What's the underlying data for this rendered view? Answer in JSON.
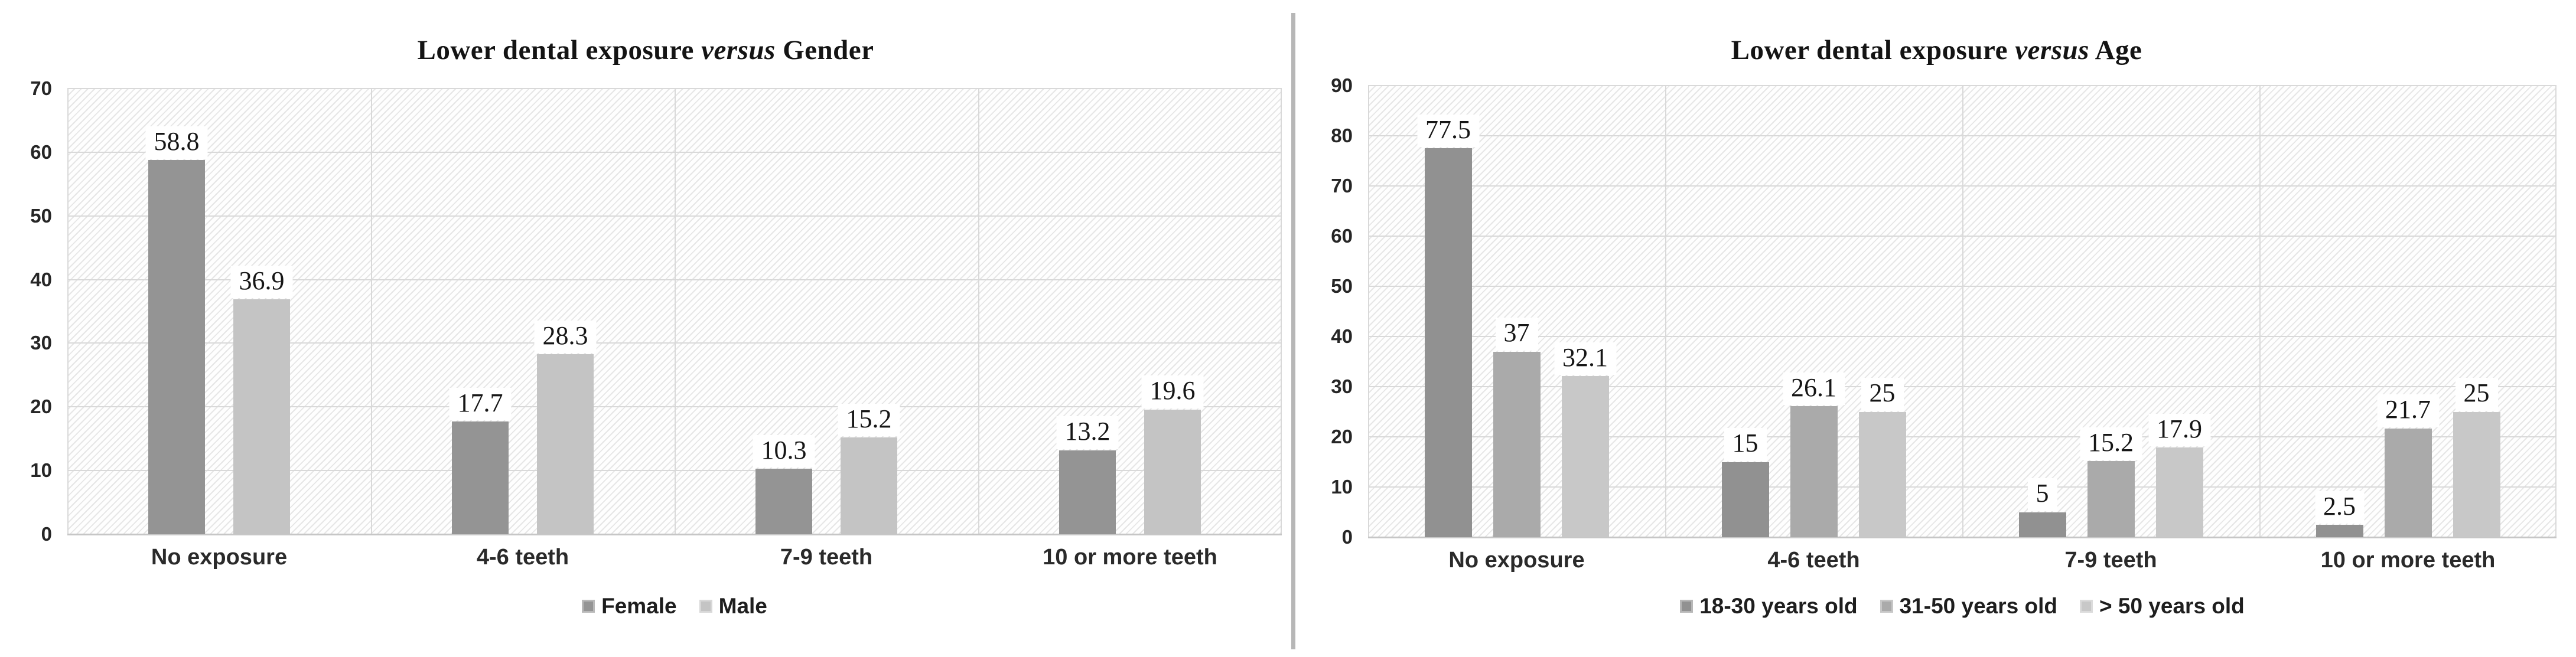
{
  "chart_data": [
    {
      "type": "bar",
      "title": "Lower dental exposure versus Gender",
      "title_prefix": "Lower dental exposure ",
      "title_italic": "versus",
      "title_suffix": " Gender",
      "categories": [
        "No exposure",
        "4-6 teeth",
        "7-9 teeth",
        "10 or more teeth"
      ],
      "series": [
        {
          "name": "Female",
          "color": "#949494",
          "values": [
            58.8,
            17.7,
            10.3,
            13.2
          ]
        },
        {
          "name": "Male",
          "color": "#c4c4c4",
          "values": [
            36.9,
            28.3,
            15.2,
            19.6
          ]
        }
      ],
      "ylim": [
        0,
        70
      ],
      "ystep": 10,
      "yticks": [
        0,
        10,
        20,
        30,
        40,
        50,
        60,
        70
      ],
      "grid": "on",
      "legend_position": "bottom"
    },
    {
      "type": "bar",
      "title": "Lower dental exposure versus Age",
      "title_prefix": "Lower dental exposure ",
      "title_italic": "versus",
      "title_suffix": " Age",
      "categories": [
        "No exposure",
        "4-6 teeth",
        "7-9 teeth",
        "10 or more teeth"
      ],
      "series": [
        {
          "name": "18-30 years old",
          "color": "#919191",
          "values": [
            77.5,
            15,
            5,
            2.5
          ]
        },
        {
          "name": "31-50 years old",
          "color": "#aaaaaa",
          "values": [
            37,
            26.1,
            15.2,
            21.7
          ]
        },
        {
          "name": "> 50 years old",
          "color": "#c8c8c8",
          "values": [
            32.1,
            25,
            17.9,
            25
          ]
        }
      ],
      "ylim": [
        0,
        90
      ],
      "ystep": 10,
      "yticks": [
        0,
        10,
        20,
        30,
        40,
        50,
        60,
        70,
        80,
        90
      ],
      "grid": "on",
      "legend_position": "bottom"
    }
  ]
}
